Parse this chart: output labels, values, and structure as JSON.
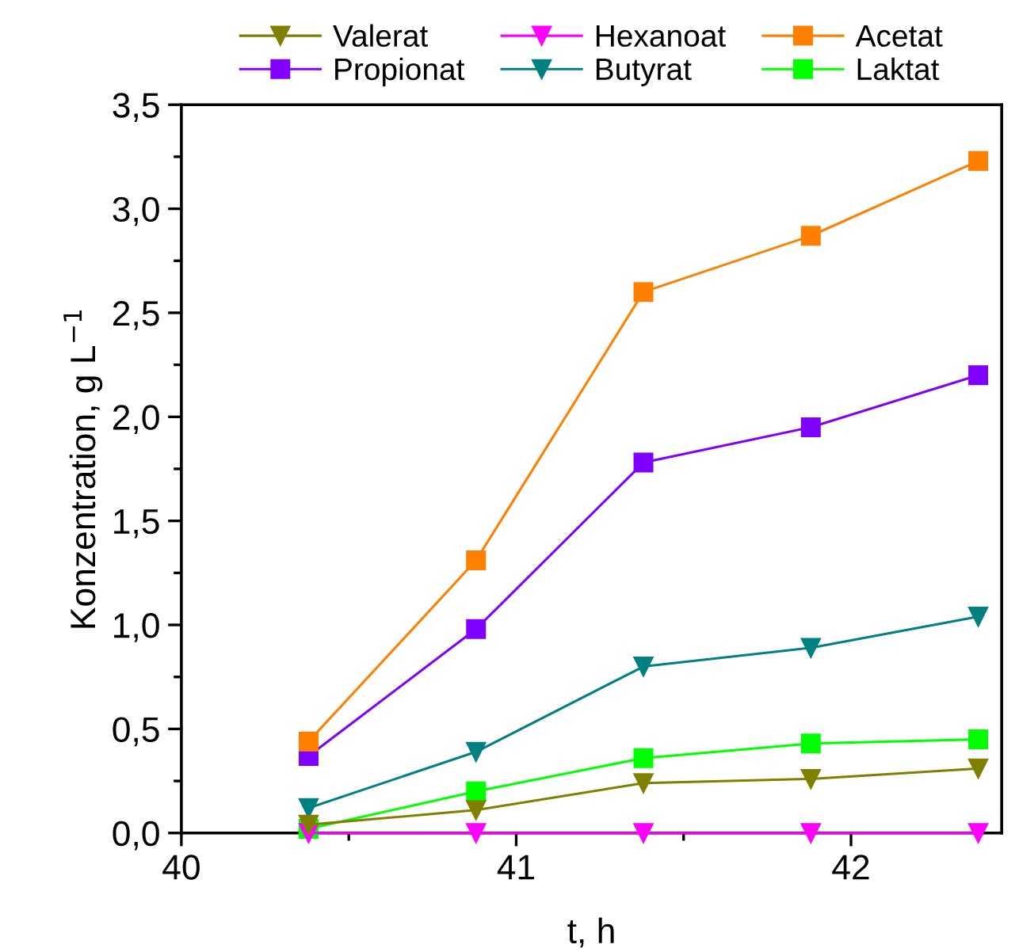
{
  "chart_data": {
    "type": "line",
    "xlabel": "t, h",
    "ylabel": "Konzentration, g L$^{−1}$",
    "x": [
      40.38,
      40.88,
      41.38,
      41.88,
      42.38
    ],
    "series": [
      {
        "name": "Valerat",
        "color": "#808000",
        "marker": "triangle",
        "values": [
          0.04,
          0.11,
          0.24,
          0.26,
          0.31
        ]
      },
      {
        "name": "Hexanoat",
        "color": "#ff00ff",
        "marker": "triangle",
        "values": [
          0,
          0,
          0,
          0,
          0
        ]
      },
      {
        "name": "Acetat",
        "color": "#ff8000",
        "marker": "square",
        "values": [
          0.44,
          1.31,
          2.6,
          2.87,
          3.23
        ]
      },
      {
        "name": "Propionat",
        "color": "#8000ff",
        "marker": "square",
        "values": [
          0.37,
          0.98,
          1.78,
          1.95,
          2.2
        ]
      },
      {
        "name": "Butyrat",
        "color": "#008080",
        "marker": "triangle",
        "values": [
          0.12,
          0.39,
          0.8,
          0.89,
          1.04
        ]
      },
      {
        "name": "Laktat",
        "color": "#00ff00",
        "marker": "square",
        "values": [
          0.02,
          0.2,
          0.36,
          0.43,
          0.45
        ]
      }
    ],
    "xlim": [
      40,
      42.45
    ],
    "xticks": [
      40,
      41,
      42
    ],
    "ylim": [
      0,
      3.5
    ],
    "yticks": [
      {
        "value": 0,
        "label": "0,0"
      },
      {
        "value": 0.5,
        "label": "0,5"
      },
      {
        "value": 1,
        "label": "1,0"
      },
      {
        "value": 1.5,
        "label": "1,5"
      },
      {
        "value": 2,
        "label": "2,0"
      },
      {
        "value": 2.5,
        "label": "2,5"
      },
      {
        "value": 3,
        "label": "3,0"
      },
      {
        "value": 3.5,
        "label": "3,5"
      }
    ],
    "grid": false,
    "legend": "top",
    "line_style": "solid"
  }
}
